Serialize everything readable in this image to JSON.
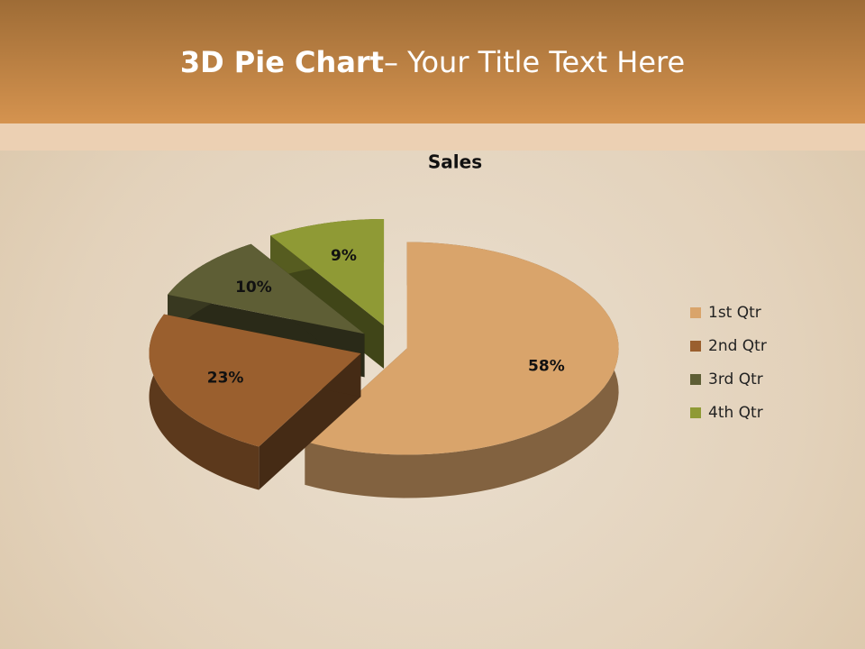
{
  "slide": {
    "title": {
      "bold": "3D Pie Chart",
      "rest": "– Your Title Text Here"
    }
  },
  "chart_data": {
    "type": "pie",
    "title": "Sales",
    "categories": [
      "1st Qtr",
      "2nd Qtr",
      "3rd Qtr",
      "4th Qtr"
    ],
    "values": [
      58,
      23,
      10,
      9
    ],
    "value_labels": [
      "58%",
      "23%",
      "10%",
      "9%"
    ],
    "colors": [
      "#d9a46b",
      "#9a5f2e",
      "#5e5e35",
      "#8f9a35"
    ],
    "legend": "right"
  }
}
